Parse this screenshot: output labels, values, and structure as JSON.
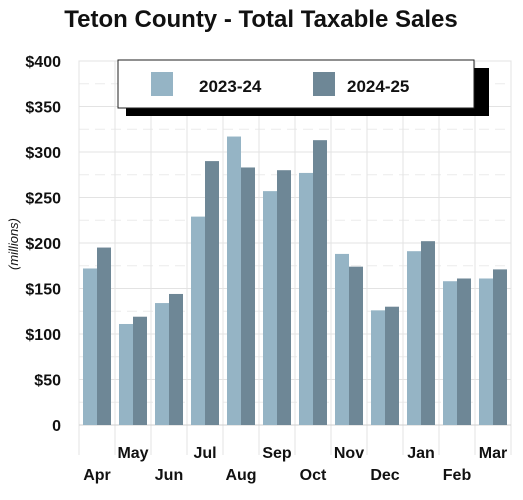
{
  "chart_data": {
    "type": "bar",
    "title": "Teton County - Total Taxable Sales",
    "ylabel": "(millions)",
    "xlabel": "",
    "ylim": [
      0,
      400
    ],
    "yticks": [
      0,
      50,
      100,
      150,
      200,
      250,
      300,
      350,
      400
    ],
    "ytick_labels": [
      "0",
      "$50",
      "$100",
      "$150",
      "$200",
      "$250",
      "$300",
      "$350",
      "$400"
    ],
    "categories": [
      "Apr",
      "May",
      "Jun",
      "Jul",
      "Aug",
      "Sep",
      "Oct",
      "Nov",
      "Dec",
      "Jan",
      "Feb",
      "Mar"
    ],
    "series": [
      {
        "name": "2023-24",
        "color": "#95b4c5",
        "values": [
          172,
          111,
          134,
          229,
          317,
          257,
          277,
          188,
          126,
          191,
          158,
          161
        ]
      },
      {
        "name": "2024-25",
        "color": "#6e8796",
        "values": [
          195,
          119,
          144,
          290,
          283,
          280,
          313,
          174,
          130,
          202,
          161,
          171
        ]
      }
    ],
    "grid": true,
    "legend": "top"
  }
}
